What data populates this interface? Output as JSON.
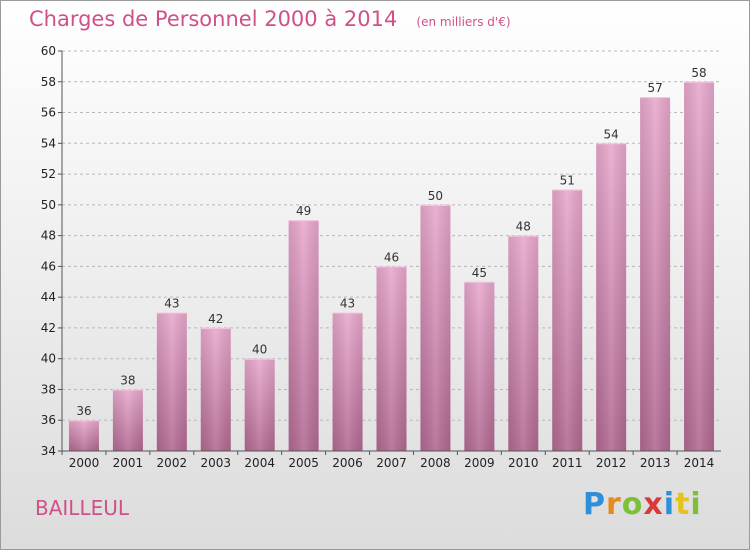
{
  "title": "Charges de Personnel 2000 à 2014",
  "subtitle": "(en milliers d'€)",
  "commune": "BAILLEUL",
  "brand": "Proxiti",
  "chart_data": {
    "type": "bar",
    "title": "Charges de Personnel 2000 à 2014",
    "subtitle": "(en milliers d'€)",
    "categories": [
      "2000",
      "2001",
      "2002",
      "2003",
      "2004",
      "2005",
      "2006",
      "2007",
      "2008",
      "2009",
      "2010",
      "2011",
      "2012",
      "2013",
      "2014"
    ],
    "values": [
      36,
      38,
      43,
      42,
      40,
      49,
      43,
      46,
      50,
      45,
      48,
      51,
      54,
      57,
      58
    ],
    "ylim": [
      34,
      60
    ],
    "yticks": [
      34,
      36,
      38,
      40,
      42,
      44,
      46,
      48,
      50,
      52,
      54,
      56,
      58,
      60
    ],
    "grid": true,
    "bar_color": "#d98cb8"
  }
}
